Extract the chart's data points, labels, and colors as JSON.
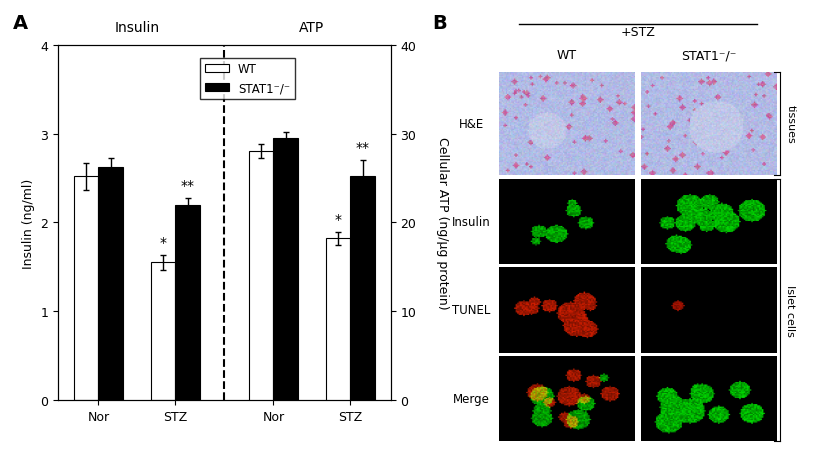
{
  "panel_A": {
    "insulin_nor_wt": 2.52,
    "insulin_nor_wt_err": 0.15,
    "insulin_nor_stat1": 2.62,
    "insulin_nor_stat1_err": 0.1,
    "insulin_stz_wt": 1.55,
    "insulin_stz_wt_err": 0.08,
    "insulin_stz_stat1": 2.2,
    "insulin_stz_stat1_err": 0.07,
    "atp_nor_wt": 28.0,
    "atp_nor_wt_err": 0.8,
    "atp_nor_stat1": 29.5,
    "atp_nor_stat1_err": 0.7,
    "atp_stz_wt": 18.2,
    "atp_stz_wt_err": 0.7,
    "atp_stz_stat1": 25.2,
    "atp_stz_stat1_err": 1.8,
    "left_ylabel": "Insulin (ng/ml)",
    "right_ylabel": "Cellular ATP (ng/μg protein)",
    "ylim_left": [
      0,
      4
    ],
    "ylim_right": [
      0,
      40
    ],
    "yticks_left": [
      0,
      1,
      2,
      3,
      4
    ],
    "yticks_right": [
      0,
      10,
      20,
      30,
      40
    ],
    "xlabel_groups": [
      "Nor",
      "STZ",
      "Nor",
      "STZ"
    ],
    "group_labels": [
      "Insulin",
      "ATP"
    ],
    "legend_wt": "WT",
    "legend_stat1": "STAT1⁻/⁻",
    "bar_width": 0.35,
    "bar_color_wt": "#ffffff",
    "bar_color_stat1": "#000000",
    "bar_edgecolor": "#000000",
    "title_label": "A"
  },
  "panel_B": {
    "title_label": "B",
    "stz_label": "+STZ",
    "col_labels": [
      "WT",
      "STAT1⁻/⁻"
    ],
    "row_labels": [
      "H&E",
      "Insulin",
      "TUNEL",
      "Merge"
    ],
    "right_labels_tissues": "tissues",
    "right_labels_islet": "Islet cells"
  }
}
